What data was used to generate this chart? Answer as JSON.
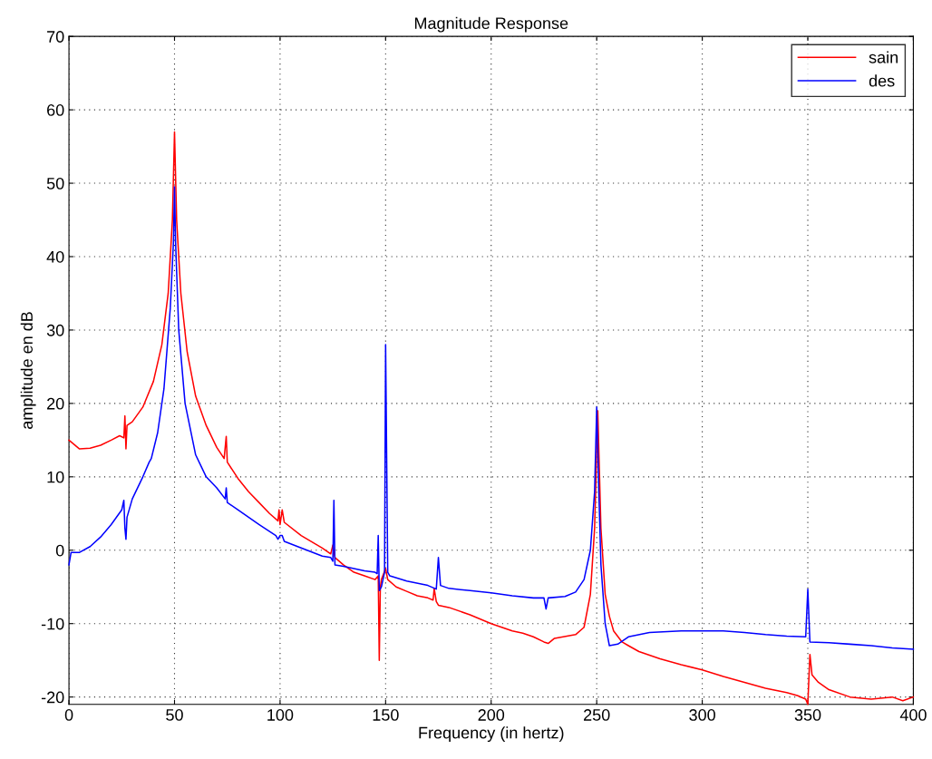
{
  "chart_data": {
    "type": "line",
    "title": "Magnitude Response",
    "xlabel": "Frequency (in hertz)",
    "ylabel": "amplitude en dB",
    "xlim": [
      0,
      400
    ],
    "xticks": [
      0,
      50,
      100,
      150,
      200,
      250,
      300,
      350,
      400
    ],
    "ylim": [
      -21,
      70
    ],
    "yticks": [
      -20,
      -10,
      0,
      10,
      20,
      30,
      40,
      50,
      60,
      70
    ],
    "grid": true,
    "legend": "top right",
    "line_style": "solid",
    "marker": "none",
    "series": [
      {
        "name": "sain",
        "color": "#ff0000",
        "x": [
          0,
          5,
          10,
          15,
          20,
          24,
          26,
          26.5,
          27,
          27.5,
          30,
          35,
          40,
          44,
          47,
          49,
          50,
          51,
          53,
          56,
          60,
          65,
          70,
          73.5,
          74.5,
          75,
          80,
          85,
          90,
          95,
          99,
          99.5,
          100,
          101,
          102,
          110,
          120,
          124,
          125,
          126,
          130,
          135,
          140,
          145,
          146.5,
          147,
          147.5,
          148,
          150,
          151,
          155,
          160,
          165,
          170,
          172.5,
          173,
          174,
          175,
          180,
          190,
          200,
          205,
          210,
          215,
          220,
          225,
          227,
          230,
          240,
          244,
          247,
          249,
          250.5,
          252,
          254,
          256,
          258,
          262,
          265,
          270,
          280,
          290,
          300,
          310,
          320,
          330,
          340,
          345,
          349,
          350,
          351,
          352,
          355,
          360,
          370,
          380,
          390,
          395,
          400
        ],
        "values": [
          15,
          13.8,
          13.9,
          14.3,
          15,
          15.6,
          15.3,
          18.3,
          13.8,
          17,
          17.5,
          19.5,
          23,
          28,
          35,
          45,
          57,
          45,
          35,
          27,
          21,
          17,
          14,
          12.5,
          15.5,
          12,
          9.8,
          8,
          6.5,
          5,
          4,
          5.5,
          3.5,
          5.5,
          3.8,
          2,
          0.3,
          -0.5,
          0.7,
          -1,
          -2,
          -3,
          -3.5,
          -4,
          -3.5,
          -15,
          -5,
          -4,
          -2.5,
          -4,
          -5,
          -5.6,
          -6.2,
          -6.5,
          -6.8,
          -5.2,
          -7,
          -7.5,
          -7.8,
          -8.8,
          -10,
          -10.5,
          -11,
          -11.3,
          -11.8,
          -12.5,
          -12.7,
          -12,
          -11.5,
          -10.5,
          -6,
          3,
          19,
          3,
          -6,
          -9,
          -11,
          -12.5,
          -13,
          -13.8,
          -14.8,
          -15.6,
          -16.3,
          -17.2,
          -18,
          -18.8,
          -19.4,
          -19.8,
          -20.3,
          -21,
          -14.2,
          -17,
          -18,
          -19,
          -20,
          -20.3,
          -20,
          -20.5,
          -20
        ]
      },
      {
        "name": "des",
        "color": "#0000ff",
        "x": [
          0,
          1,
          5,
          10,
          15,
          20,
          25,
          26,
          26.5,
          27,
          27.5,
          30,
          35,
          38,
          39,
          42,
          45,
          48,
          49.5,
          50,
          50.5,
          52,
          55,
          60,
          65,
          70,
          74,
          74.5,
          75,
          80,
          90,
          98,
          99,
          100,
          101,
          102,
          110,
          120,
          124,
          125,
          125.5,
          126,
          130,
          140,
          145,
          146,
          146.5,
          147,
          148,
          149.5,
          150,
          151,
          152,
          160,
          170,
          174,
          175,
          176,
          180,
          190,
          200,
          210,
          220,
          225,
          226,
          227,
          235,
          240,
          244,
          247,
          249,
          250,
          251,
          252,
          254,
          256,
          260,
          265,
          275,
          290,
          300,
          310,
          320,
          330,
          340,
          349,
          350,
          351,
          360,
          370,
          380,
          390,
          400
        ],
        "values": [
          -2,
          -0.3,
          -0.3,
          0.5,
          1.8,
          3.5,
          5.5,
          6.8,
          3,
          1.5,
          4.5,
          7,
          10,
          12,
          12.5,
          16,
          22,
          33,
          42,
          49.5,
          42,
          30,
          20,
          13,
          10,
          8.5,
          7,
          8.5,
          6.5,
          5.5,
          3.5,
          2,
          1.5,
          2,
          2,
          1.2,
          0.3,
          -0.8,
          -1,
          -1.5,
          6.8,
          -2,
          -2.2,
          -2.8,
          -3,
          -3.2,
          2,
          -5.5,
          -5,
          -3,
          28,
          -3,
          -3.5,
          -4.2,
          -4.8,
          -5.3,
          -1,
          -4.8,
          -5.2,
          -5.5,
          -5.8,
          -6.2,
          -6.5,
          -6.5,
          -8,
          -6.5,
          -6.3,
          -5.7,
          -4,
          0,
          8,
          19.5,
          8,
          -2,
          -10,
          -13,
          -12.8,
          -11.8,
          -11.2,
          -11,
          -11,
          -11,
          -11.2,
          -11.5,
          -11.7,
          -11.8,
          -5.3,
          -12.5,
          -12.6,
          -12.8,
          -13,
          -13.3,
          -13.5
        ]
      }
    ]
  }
}
